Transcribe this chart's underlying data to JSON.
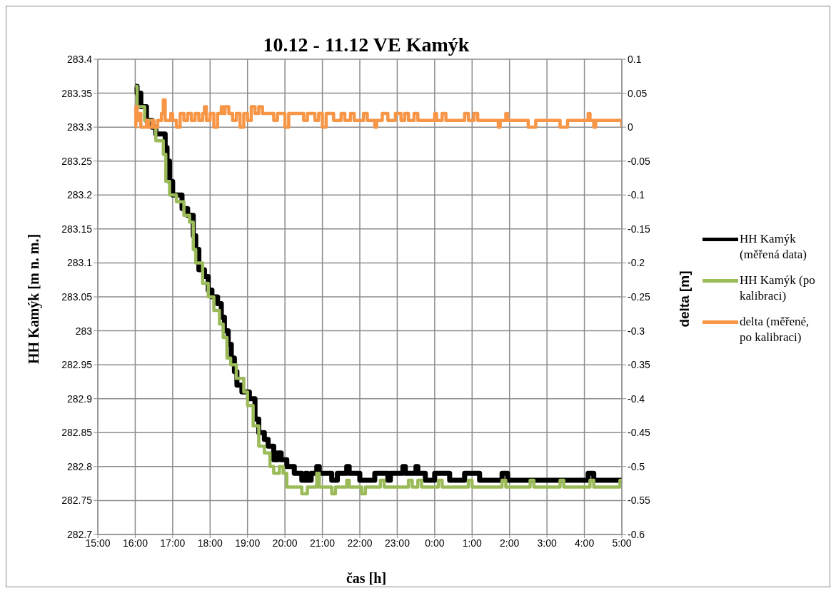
{
  "chart_data": {
    "type": "step",
    "title": "10.12 - 11.12  VE Kamýk",
    "xlabel": "čas [h]",
    "ylabel": "HH Kamýk [m n. m.]",
    "y2label": "delta [m]",
    "xlim": [
      "--12-10T15:00",
      "--12-11T05:00"
    ],
    "xticks": [
      {
        "value": "--12-10T15:00",
        "label": "15:00"
      },
      {
        "value": "--12-10T16:00",
        "label": "16:00"
      },
      {
        "value": "--12-10T17:00",
        "label": "17:00"
      },
      {
        "value": "--12-10T18:00",
        "label": "18:00"
      },
      {
        "value": "--12-10T19:00",
        "label": "19:00"
      },
      {
        "value": "--12-10T20:00",
        "label": "20:00"
      },
      {
        "value": "--12-10T21:00",
        "label": "21:00"
      },
      {
        "value": "--12-10T22:00",
        "label": "22:00"
      },
      {
        "value": "--12-10T23:00",
        "label": "23:00"
      },
      {
        "value": "--12-11T00:00",
        "label": "0:00"
      },
      {
        "value": "--12-11T01:00",
        "label": "1:00"
      },
      {
        "value": "--12-11T02:00",
        "label": "2:00"
      },
      {
        "value": "--12-11T03:00",
        "label": "3:00"
      },
      {
        "value": "--12-11T04:00",
        "label": "4:00"
      },
      {
        "value": "--12-11T05:00",
        "label": "5:00"
      }
    ],
    "ylim": [
      282.7,
      283.4
    ],
    "yticks": [
      282.7,
      282.75,
      282.8,
      282.85,
      282.9,
      282.95,
      283,
      283.05,
      283.1,
      283.15,
      283.2,
      283.25,
      283.3,
      283.35,
      283.4
    ],
    "y2lim": [
      -0.6,
      0.1
    ],
    "y2ticks": [
      -0.6,
      -0.55,
      -0.5,
      -0.45,
      -0.4,
      -0.35,
      -0.3,
      -0.25,
      -0.2,
      -0.15,
      -0.1,
      -0.05,
      0,
      0.05,
      0.1
    ],
    "grid": true,
    "legend": "right",
    "series": [
      {
        "name": "HH Kamýk (měřená data)",
        "color": "#000000",
        "x": [
          "--12-10T16:00",
          "--12-10T16:03",
          "--12-10T16:09",
          "--12-10T16:18",
          "--12-10T16:27",
          "--12-10T16:33",
          "--12-10T16:48",
          "--12-10T16:51",
          "--12-10T16:55",
          "--12-10T17:00",
          "--12-10T17:15",
          "--12-10T17:24",
          "--12-10T17:33",
          "--12-10T17:37",
          "--12-10T17:42",
          "--12-10T17:51",
          "--12-10T17:57",
          "--12-10T18:03",
          "--12-10T18:12",
          "--12-10T18:18",
          "--12-10T18:23",
          "--12-10T18:29",
          "--12-10T18:34",
          "--12-10T18:39",
          "--12-10T18:43",
          "--12-10T18:51",
          "--12-10T19:03",
          "--12-10T19:12",
          "--12-10T19:18",
          "--12-10T19:27",
          "--12-10T19:33",
          "--12-10T19:42",
          "--12-10T19:48",
          "--12-10T19:54",
          "--12-10T20:03",
          "--12-10T20:15",
          "--12-10T20:27",
          "--12-10T20:33",
          "--12-10T20:36",
          "--12-10T20:42",
          "--12-10T20:51",
          "--12-10T20:55",
          "--12-10T21:15",
          "--12-10T21:24",
          "--12-10T21:39",
          "--12-10T21:43",
          "--12-10T22:00",
          "--12-10T22:24",
          "--12-10T22:45",
          "--12-10T22:49",
          "--12-10T23:09",
          "--12-10T23:13",
          "--12-10T23:30",
          "--12-10T23:33",
          "--12-10T23:45",
          "--12-11T00:00",
          "--12-11T00:24",
          "--12-11T00:48",
          "--12-11T01:12",
          "--12-11T01:48",
          "--12-11T01:57",
          "--12-11T04:06",
          "--12-11T04:15",
          "--12-11T05:00"
        ],
        "values": [
          283.36,
          283.35,
          283.33,
          283.31,
          283.3,
          283.29,
          283.27,
          283.25,
          283.22,
          283.2,
          283.18,
          283.17,
          283.14,
          283.12,
          283.09,
          283.08,
          283.06,
          283.05,
          283.04,
          283.02,
          283.0,
          282.98,
          282.96,
          282.94,
          282.92,
          282.91,
          282.9,
          282.87,
          282.85,
          282.84,
          282.83,
          282.81,
          282.82,
          282.81,
          282.8,
          282.79,
          282.78,
          282.79,
          282.78,
          282.79,
          282.8,
          282.79,
          282.78,
          282.79,
          282.8,
          282.79,
          282.78,
          282.79,
          282.78,
          282.79,
          282.8,
          282.79,
          282.8,
          282.79,
          282.78,
          282.79,
          282.78,
          282.79,
          282.78,
          282.79,
          282.78,
          282.79,
          282.78,
          282.78
        ]
      },
      {
        "name": "HH Kamýk (po kalibraci)",
        "color": "#9bbb59",
        "x": [
          "--12-10T16:00",
          "--12-10T16:03",
          "--12-10T16:15",
          "--12-10T16:27",
          "--12-10T16:33",
          "--12-10T16:45",
          "--12-10T16:49",
          "--12-10T16:55",
          "--12-10T17:06",
          "--12-10T17:18",
          "--12-10T17:27",
          "--12-10T17:33",
          "--12-10T17:37",
          "--12-10T17:48",
          "--12-10T17:57",
          "--12-10T18:06",
          "--12-10T18:15",
          "--12-10T18:21",
          "--12-10T18:27",
          "--12-10T18:33",
          "--12-10T18:42",
          "--12-10T18:54",
          "--12-10T19:00",
          "--12-10T19:09",
          "--12-10T19:18",
          "--12-10T19:27",
          "--12-10T19:36",
          "--12-10T19:42",
          "--12-10T19:51",
          "--12-10T19:57",
          "--12-10T20:03",
          "--12-10T20:27",
          "--12-10T20:36",
          "--12-10T20:51",
          "--12-10T20:55",
          "--12-10T21:15",
          "--12-10T21:21",
          "--12-10T21:39",
          "--12-10T21:43",
          "--12-10T22:03",
          "--12-10T22:09",
          "--12-10T22:33",
          "--12-10T22:39",
          "--12-10T23:18",
          "--12-10T23:24",
          "--12-10T23:33",
          "--12-10T23:39",
          "--12-11T00:06",
          "--12-11T00:12",
          "--12-11T00:54",
          "--12-11T01:00",
          "--12-11T01:48",
          "--12-11T01:54",
          "--12-11T02:33",
          "--12-11T02:39",
          "--12-11T03:21",
          "--12-11T03:27",
          "--12-11T04:09",
          "--12-11T04:15",
          "--12-11T04:57",
          "--12-11T05:00"
        ],
        "values": [
          283.36,
          283.33,
          283.31,
          283.3,
          283.28,
          283.26,
          283.22,
          283.2,
          283.19,
          283.17,
          283.16,
          283.12,
          283.1,
          283.07,
          283.05,
          283.03,
          283.01,
          282.99,
          282.96,
          282.95,
          282.93,
          282.91,
          282.89,
          282.86,
          282.83,
          282.82,
          282.8,
          282.79,
          282.8,
          282.79,
          282.77,
          282.76,
          282.77,
          282.79,
          282.77,
          282.76,
          282.77,
          282.78,
          282.77,
          282.76,
          282.77,
          282.78,
          282.77,
          282.78,
          282.77,
          282.78,
          282.77,
          282.78,
          282.77,
          282.78,
          282.77,
          282.78,
          282.77,
          282.78,
          282.77,
          282.78,
          282.77,
          282.78,
          282.77,
          282.78,
          282.78
        ]
      },
      {
        "name": "delta (měřené, po kalibraci)",
        "color": "#f79646",
        "axis": "y2",
        "x": [
          "--12-10T16:00",
          "--12-10T16:01",
          "--12-10T16:03",
          "--12-10T16:06",
          "--12-10T16:09",
          "--12-10T16:18",
          "--12-10T16:21",
          "--12-10T16:27",
          "--12-10T16:30",
          "--12-10T16:36",
          "--12-10T16:42",
          "--12-10T16:45",
          "--12-10T16:48",
          "--12-10T16:57",
          "--12-10T17:00",
          "--12-10T17:06",
          "--12-10T17:12",
          "--12-10T17:18",
          "--12-10T17:24",
          "--12-10T17:30",
          "--12-10T17:36",
          "--12-10T17:42",
          "--12-10T17:48",
          "--12-10T17:51",
          "--12-10T17:54",
          "--12-10T18:00",
          "--12-10T18:06",
          "--12-10T18:12",
          "--12-10T18:18",
          "--12-10T18:21",
          "--12-10T18:24",
          "--12-10T18:30",
          "--12-10T18:36",
          "--12-10T18:42",
          "--12-10T18:48",
          "--12-10T18:54",
          "--12-10T19:00",
          "--12-10T19:06",
          "--12-10T19:12",
          "--12-10T19:18",
          "--12-10T19:24",
          "--12-10T19:42",
          "--12-10T19:48",
          "--12-10T20:00",
          "--12-10T20:06",
          "--12-10T20:30",
          "--12-10T20:36",
          "--12-10T20:48",
          "--12-10T20:54",
          "--12-10T21:00",
          "--12-10T21:06",
          "--12-10T21:18",
          "--12-10T21:30",
          "--12-10T21:36",
          "--12-10T21:45",
          "--12-10T21:51",
          "--12-10T22:06",
          "--12-10T22:12",
          "--12-10T22:24",
          "--12-10T22:27",
          "--12-10T22:36",
          "--12-10T22:45",
          "--12-10T22:57",
          "--12-10T23:06",
          "--12-10T23:12",
          "--12-10T23:18",
          "--12-10T23:27",
          "--12-10T23:33",
          "--12-11T00:00",
          "--12-11T00:03",
          "--12-11T00:12",
          "--12-11T00:18",
          "--12-11T00:48",
          "--12-11T00:54",
          "--12-11T01:03",
          "--12-11T01:09",
          "--12-11T01:42",
          "--12-11T01:45",
          "--12-11T01:54",
          "--12-11T01:57",
          "--12-11T02:30",
          "--12-11T02:42",
          "--12-11T03:21",
          "--12-11T03:33",
          "--12-11T04:06",
          "--12-11T04:09",
          "--12-11T04:15",
          "--12-11T04:18",
          "--12-11T04:59",
          "--12-11T05:00"
        ],
        "values": [
          0,
          0.03,
          0.01,
          0.02,
          0,
          0.01,
          0,
          0.01,
          0,
          0.01,
          0.02,
          0.04,
          0.01,
          0.02,
          0.01,
          0,
          0.02,
          0.01,
          0.02,
          0.01,
          0.02,
          0.01,
          0.02,
          0.03,
          0.01,
          0.02,
          0,
          0.02,
          0.03,
          0.02,
          0.03,
          0.02,
          0.01,
          0.02,
          0,
          0.02,
          0.01,
          0.03,
          0.02,
          0.03,
          0.02,
          0.01,
          0.02,
          0,
          0.02,
          0.01,
          0.02,
          0.01,
          0.02,
          0,
          0.02,
          0.01,
          0.02,
          0.01,
          0.02,
          0.01,
          0.02,
          0.01,
          0,
          0.01,
          0.02,
          0.01,
          0.02,
          0.01,
          0.02,
          0.01,
          0.02,
          0.01,
          0.02,
          0.01,
          0.02,
          0.01,
          0.02,
          0.01,
          0.02,
          0.01,
          0,
          0.01,
          0.02,
          0.01,
          0,
          0.01,
          0,
          0.01,
          0.02,
          0.01,
          0,
          0.01,
          0.01,
          0
        ]
      }
    ]
  }
}
